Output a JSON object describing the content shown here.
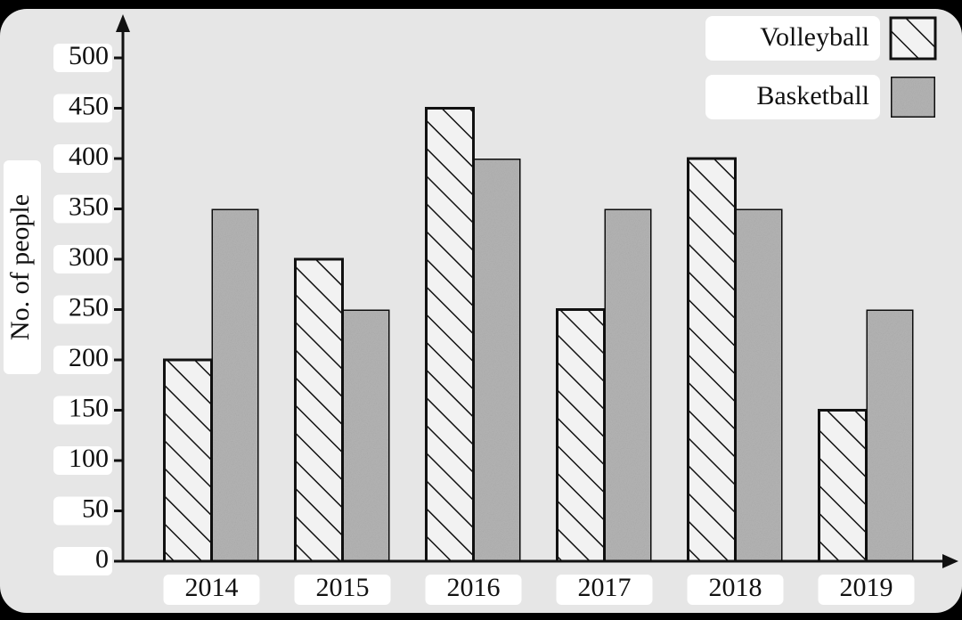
{
  "chart_data": {
    "type": "bar",
    "y_label": "No. of people",
    "categories": [
      "2014",
      "2015",
      "2016",
      "2017",
      "2018",
      "2019"
    ],
    "series": [
      {
        "name": "Volleyball",
        "color": "#f2f2f2",
        "pattern": "hatch",
        "values": [
          200,
          300,
          450,
          250,
          400,
          150
        ]
      },
      {
        "name": "Basketball",
        "color": "#b4b4b4",
        "pattern": "stipple",
        "values": [
          350,
          250,
          400,
          350,
          350,
          250
        ]
      }
    ],
    "ylim": [
      0,
      540
    ],
    "yticks": [
      0,
      50,
      100,
      150,
      200,
      250,
      300,
      350,
      400,
      450,
      500
    ],
    "grid": false,
    "legend": "top-right"
  }
}
